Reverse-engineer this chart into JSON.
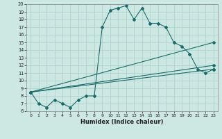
{
  "xlabel": "Humidex (Indice chaleur)",
  "xlim": [
    -0.5,
    23.5
  ],
  "ylim": [
    6,
    20
  ],
  "xticks": [
    0,
    1,
    2,
    3,
    4,
    5,
    6,
    7,
    8,
    9,
    10,
    11,
    12,
    13,
    14,
    15,
    16,
    17,
    18,
    19,
    20,
    21,
    22,
    23
  ],
  "yticks": [
    6,
    7,
    8,
    9,
    10,
    11,
    12,
    13,
    14,
    15,
    16,
    17,
    18,
    19,
    20
  ],
  "bg_color": "#cde8e2",
  "grid_color": "#aacfca",
  "line_color": "#1a6b6b",
  "main_curve": {
    "x": [
      0,
      1,
      2,
      3,
      4,
      5,
      6,
      7,
      8,
      9,
      10,
      11,
      12,
      13,
      14,
      15,
      16,
      17,
      18,
      19,
      20,
      21,
      22,
      23
    ],
    "y": [
      8.5,
      7.0,
      6.5,
      7.5,
      7.0,
      6.5,
      7.5,
      8.0,
      8.0,
      17.0,
      19.2,
      19.5,
      19.8,
      18.0,
      19.5,
      17.5,
      17.5,
      17.0,
      15.0,
      14.5,
      13.5,
      11.5,
      11.0,
      11.5
    ]
  },
  "straight_lines": [
    {
      "x": [
        0,
        23
      ],
      "y": [
        8.5,
        11.5
      ]
    },
    {
      "x": [
        0,
        23
      ],
      "y": [
        8.5,
        12.0
      ]
    },
    {
      "x": [
        0,
        23
      ],
      "y": [
        8.5,
        15.0
      ]
    }
  ]
}
